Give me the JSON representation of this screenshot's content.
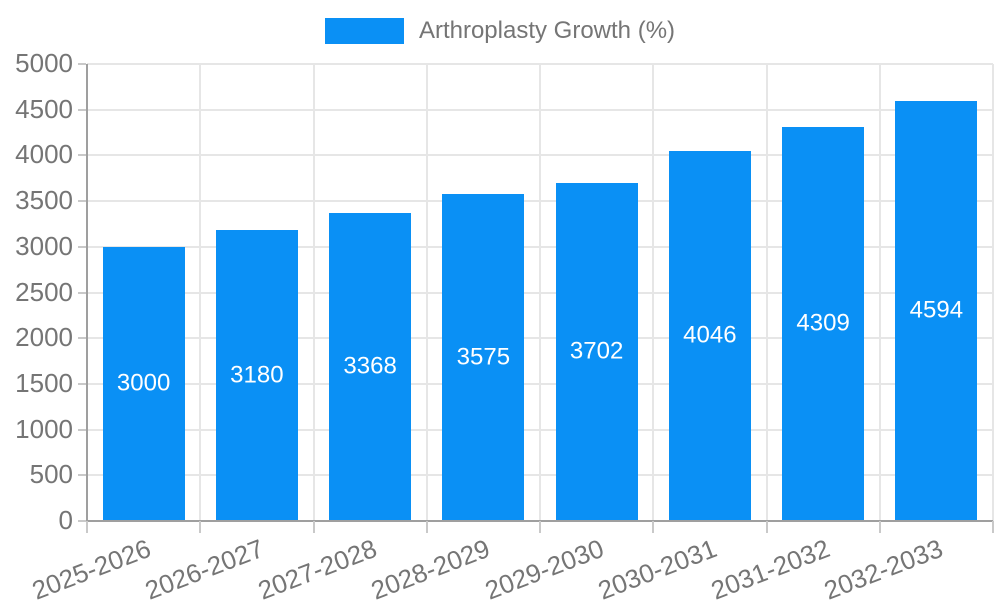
{
  "legend": {
    "label": "Arthroplasty Growth (%)"
  },
  "chart_data": {
    "type": "bar",
    "title": "Arthroplasty Growth (%)",
    "categories": [
      "2025-2026",
      "2026-2027",
      "2027-2028",
      "2028-2029",
      "2029-2030",
      "2030-2031",
      "2031-2032",
      "2032-2033"
    ],
    "values": [
      3000,
      3180,
      3368,
      3575,
      3702,
      4046,
      4309,
      4594
    ],
    "yticks": [
      0,
      500,
      1000,
      1500,
      2000,
      2500,
      3000,
      3500,
      4000,
      4500,
      5000
    ],
    "ylim": [
      0,
      5000
    ],
    "xlabel": "",
    "ylabel": "",
    "grid": true,
    "legend_position": "top",
    "x_label_rotation_deg": -21,
    "colors": {
      "bar": "#0a90f5",
      "bar_label": "#ffffff",
      "axis_text": "#757575",
      "grid_line": "#e6e6e6",
      "axis_line": "#9f9f9f",
      "tick": "#c9c9c9",
      "background": "#ffffff"
    }
  }
}
